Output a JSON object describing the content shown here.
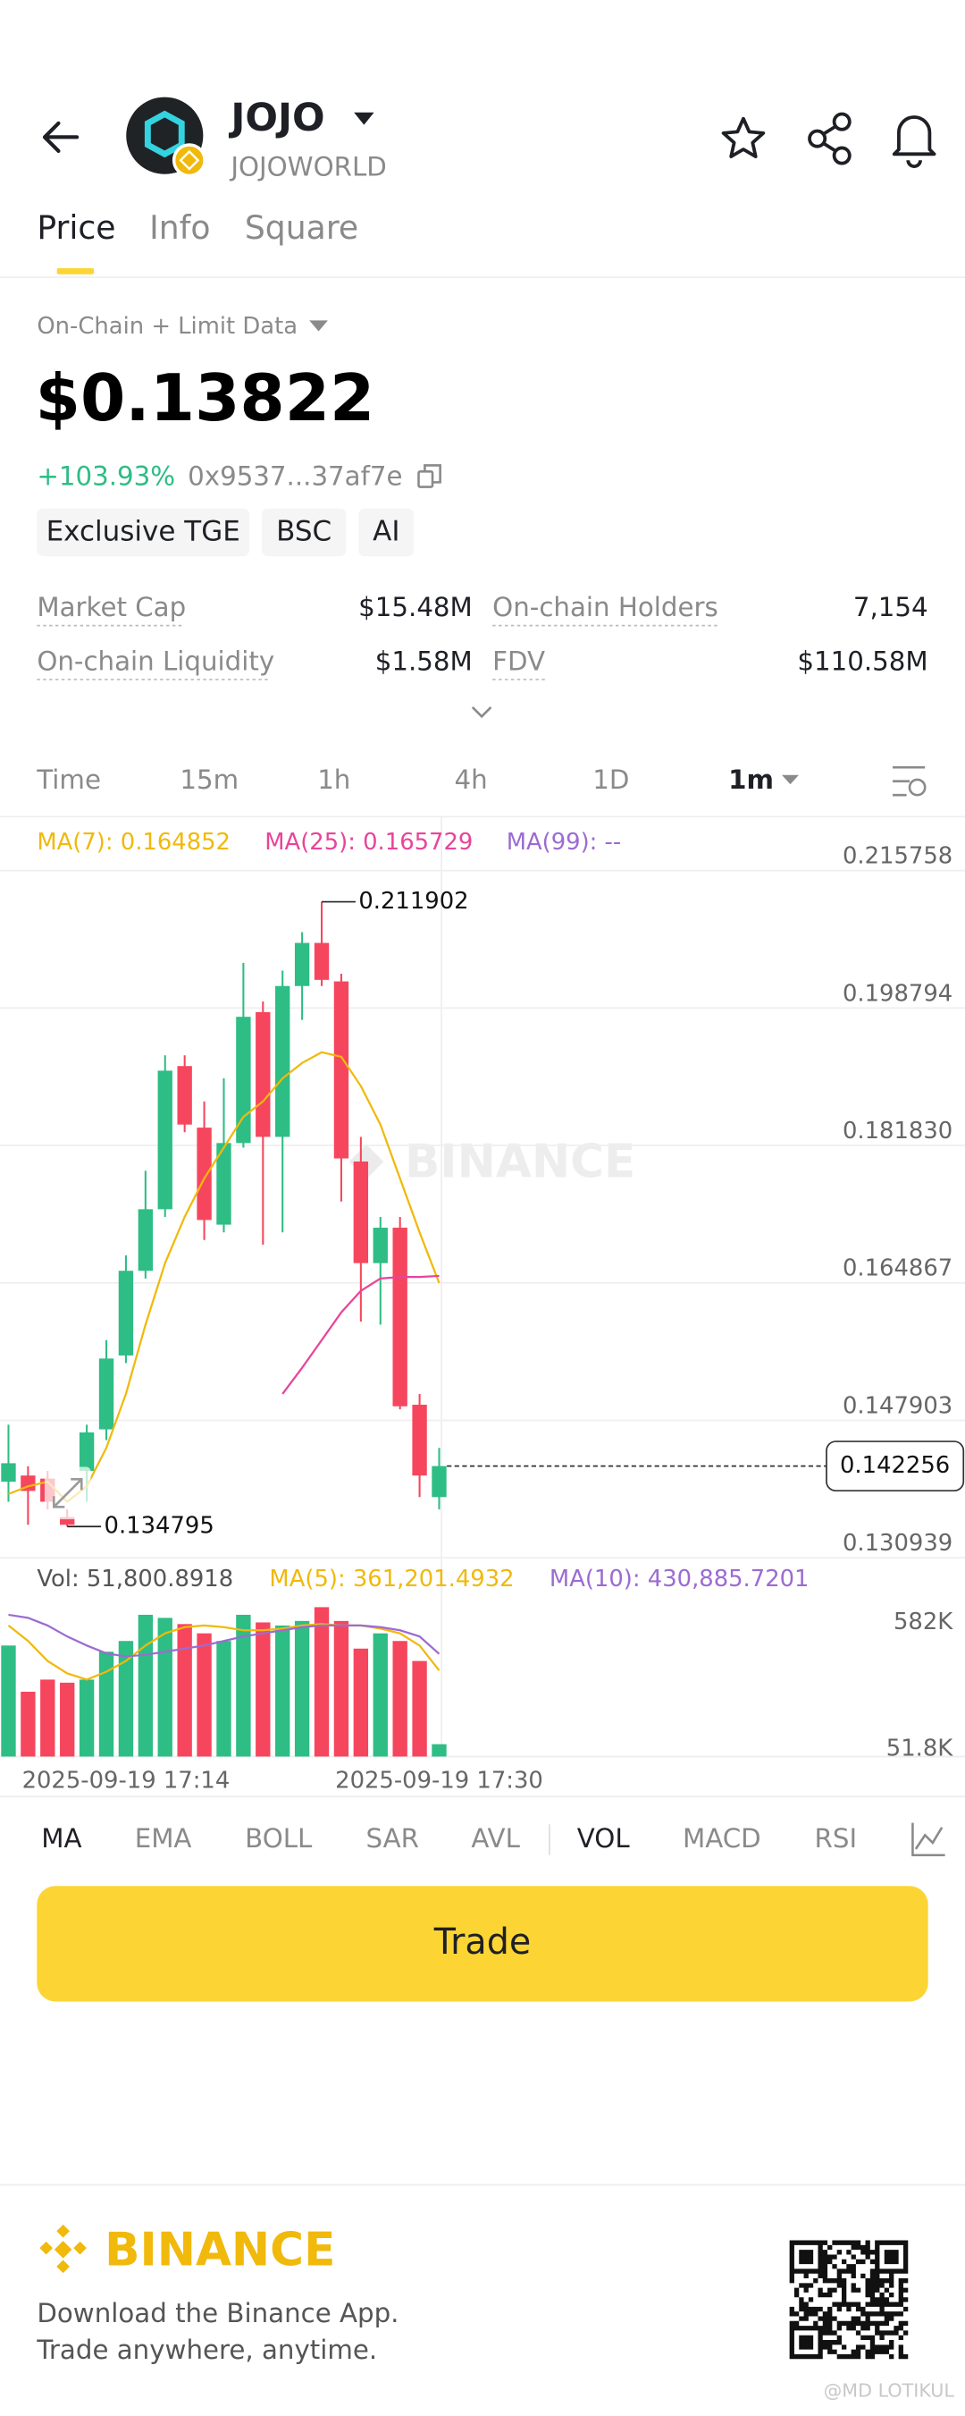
{
  "header": {
    "title": "JOJO",
    "subtitle": "JOJOWORLD"
  },
  "tabs": [
    "Price",
    "Info",
    "Square"
  ],
  "data_source": "On-Chain + Limit Data",
  "price": "$0.13822",
  "change": "+103.93%",
  "address": "0x9537...37af7e",
  "tags": [
    "Exclusive TGE",
    "BSC",
    "AI"
  ],
  "stats": [
    {
      "label": "Market Cap",
      "value": "$15.48M"
    },
    {
      "label": "On-chain Holders",
      "value": "7,154"
    },
    {
      "label": "On-chain Liquidity",
      "value": "$1.58M"
    },
    {
      "label": "FDV",
      "value": "$110.58M"
    }
  ],
  "time_tabs": [
    "Time",
    "15m",
    "1h",
    "4h",
    "1D",
    "1m"
  ],
  "chart_data": {
    "type": "candlestick",
    "watermark": "BINANCE",
    "categories": [
      null,
      null,
      null,
      null,
      null,
      null,
      "2025-09-19 17:14",
      null,
      null,
      null,
      null,
      null,
      null,
      null,
      null,
      null,
      null,
      null,
      null,
      null,
      null,
      null,
      "2025-09-19 17:30"
    ],
    "open": [
      0.140328,
      0.141088,
      0.140708,
      0.135958,
      0.141658,
      0.146788,
      0.155908,
      0.166358,
      0.173958,
      0.191628,
      0.184028,
      0.172058,
      0.182128,
      0.198278,
      0.182888,
      0.201508,
      0.206828,
      0.202078,
      0.179848,
      0.167308,
      0.171678,
      0.149828,
      0.138428
    ],
    "high": [
      0.147358,
      0.142228,
      0.141658,
      0.136908,
      0.147358,
      0.157808,
      0.168258,
      0.178708,
      0.192958,
      0.192958,
      0.187258,
      0.190108,
      0.204358,
      0.199608,
      0.203408,
      0.208158,
      0.211902,
      0.203028,
      0.182888,
      0.173008,
      0.173008,
      0.151158,
      0.144508
    ],
    "low": [
      0.137858,
      0.135008,
      0.136908,
      0.134795,
      0.137858,
      0.145458,
      0.154958,
      0.165408,
      0.173008,
      0.183458,
      0.170158,
      0.171108,
      0.181558,
      0.169588,
      0.171108,
      0.197328,
      0.201508,
      0.174908,
      0.160088,
      0.159708,
      0.149258,
      0.138428,
      0.136908
    ],
    "close": [
      0.142608,
      0.139188,
      0.137858,
      0.135008,
      0.146408,
      0.155528,
      0.166358,
      0.173958,
      0.191058,
      0.184408,
      0.172628,
      0.182128,
      0.197708,
      0.182888,
      0.201508,
      0.206828,
      0.202268,
      0.180228,
      0.167308,
      0.171678,
      0.149638,
      0.141088,
      0.142256
    ],
    "up_color": "#2ebd85",
    "down_color": "#f6465d",
    "ylim": [
      0.130939,
      0.215758
    ],
    "yticks": [
      0.215758,
      0.198794,
      {
        "value": 0.18183,
        "label": "0.181830"
      },
      0.164867,
      0.147903,
      0.130939
    ],
    "grid": true,
    "series": [
      {
        "name": "MA(7): 0.164852",
        "color": "#f0b90b",
        "values": [
          0.138808,
          0.139758,
          0.140328,
          0.137858,
          0.139758,
          0.144508,
          0.151158,
          0.159708,
          0.167308,
          0.173008,
          0.177758,
          0.181558,
          0.185358,
          0.187258,
          0.190108,
          0.192008,
          0.193338,
          0.192768,
          0.189158,
          0.184408,
          0.177758,
          0.171108,
          0.164852
        ]
      },
      {
        "name": "MA(25): 0.165729",
        "color": "#e8449a",
        "values": [
          null,
          null,
          null,
          null,
          null,
          null,
          null,
          null,
          null,
          null,
          null,
          null,
          null,
          null,
          0.151158,
          0.154388,
          0.157808,
          0.161228,
          0.163888,
          0.165408,
          0.165598,
          0.165598,
          0.165729
        ]
      },
      {
        "name": "MA(99): --",
        "color": "#9c6bd1",
        "values": [
          null,
          null,
          null,
          null,
          null,
          null,
          null,
          null,
          null,
          null,
          null,
          null,
          null,
          null,
          null,
          null,
          null,
          null,
          null,
          null,
          null,
          null,
          null
        ]
      }
    ],
    "volume": {
      "name": "Vol: 51,800.8918",
      "color": "#555555",
      "values": [
        466000,
        272000,
        323000,
        310000,
        323000,
        440000,
        485000,
        595000,
        582000,
        556000,
        517000,
        485000,
        595000,
        563000,
        550000,
        569000,
        627000,
        569000,
        453000,
        517000,
        485000,
        401000,
        51800.8918
      ],
      "ylim": [
        0,
        650000
      ],
      "yticks": [
        {
          "value": 582000,
          "label": "582K"
        },
        {
          "value": 51800,
          "label": "51.8K"
        }
      ],
      "series": [
        {
          "name": "MA(5): 361,201.4932",
          "color": "#f0b90b",
          "values": [
            550000,
            485000,
            401000,
            349000,
            323000,
            356000,
            401000,
            466000,
            517000,
            543000,
            550000,
            543000,
            530000,
            530000,
            537000,
            550000,
            556000,
            550000,
            550000,
            537000,
            517000,
            466000,
            361201.4932
          ]
        },
        {
          "name": "MA(10): 430,885.7201",
          "color": "#9c6bd1",
          "values": [
            595000,
            582000,
            550000,
            504000,
            466000,
            433000,
            420000,
            427000,
            440000,
            453000,
            466000,
            485000,
            504000,
            517000,
            530000,
            543000,
            550000,
            550000,
            550000,
            543000,
            530000,
            504000,
            430885.7201
          ]
        }
      ]
    }
  },
  "indicators": [
    "MA",
    "EMA",
    "BOLL",
    "SAR",
    "AVL",
    "VOL",
    "MACD",
    "RSI"
  ],
  "trade_button": "Trade",
  "footer": {
    "brand": "BINANCE",
    "line1": "Download the Binance App.",
    "line2": "Trade anywhere, anytime.",
    "watermark": "@MD LOTIKUL"
  }
}
